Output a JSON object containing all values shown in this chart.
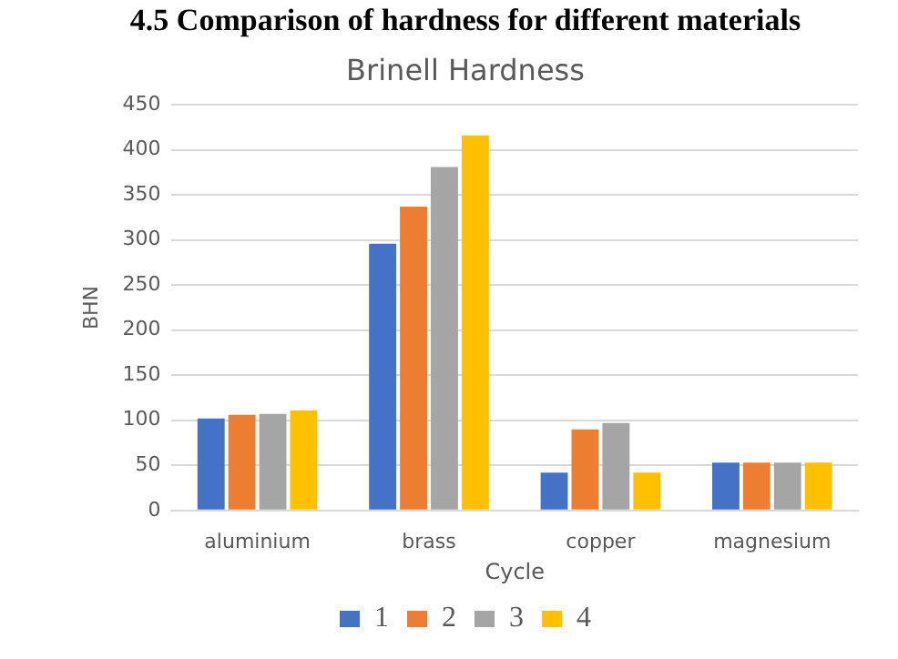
{
  "chart_data": {
    "type": "bar",
    "title": "4.5 Comparison of hardness for different materials",
    "subtitle": "Brinell Hardness",
    "xlabel": "Cycle",
    "ylabel": "BHN",
    "categories": [
      "aluminium",
      "brass",
      "copper",
      "magnesium"
    ],
    "series": [
      {
        "name": "1",
        "color": "#4472c4",
        "values": [
          102,
          296,
          42,
          53
        ]
      },
      {
        "name": "2",
        "color": "#ed7d31",
        "values": [
          106,
          337,
          90,
          53
        ]
      },
      {
        "name": "3",
        "color": "#a5a5a5",
        "values": [
          107,
          381,
          97,
          53
        ]
      },
      {
        "name": "4",
        "color": "#ffc000",
        "values": [
          111,
          416,
          42,
          53
        ]
      }
    ],
    "ylim": [
      0,
      450
    ],
    "yticks": [
      0,
      50,
      100,
      150,
      200,
      250,
      300,
      350,
      400,
      450
    ],
    "grid": "y",
    "legend": "bottom"
  }
}
